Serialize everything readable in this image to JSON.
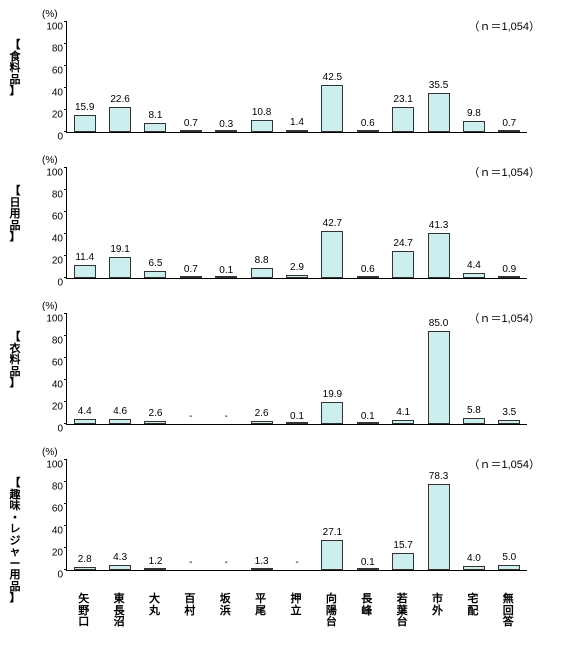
{
  "n_label": "（ｎ＝1,054）",
  "ylim": [
    0,
    100
  ],
  "ytick_step": 20,
  "yunit": "(%)",
  "bar_color": "#cceeee",
  "border_color": "#333333",
  "categories": [
    "矢野口",
    "東長沼",
    "大丸",
    "百村",
    "坂浜",
    "平尾",
    "押立",
    "向陽台",
    "長峰",
    "若葉台",
    "市外",
    "宅配",
    "無回答"
  ],
  "panels": [
    {
      "title": "【食料品】",
      "values": [
        15.9,
        22.6,
        8.1,
        0.7,
        0.3,
        10.8,
        1.4,
        42.5,
        0.6,
        23.1,
        35.5,
        9.8,
        0.7
      ]
    },
    {
      "title": "【日用品】",
      "values": [
        11.4,
        19.1,
        6.5,
        0.7,
        0.1,
        8.8,
        2.9,
        42.7,
        0.6,
        24.7,
        41.3,
        4.4,
        0.9
      ]
    },
    {
      "title": "【衣料品】",
      "values": [
        4.4,
        4.6,
        2.6,
        null,
        null,
        2.6,
        0.1,
        19.9,
        0.1,
        4.1,
        85.0,
        5.8,
        3.5
      ]
    },
    {
      "title": "【趣味・レジャー用品】",
      "values": [
        2.8,
        4.3,
        1.2,
        null,
        null,
        1.3,
        null,
        27.1,
        0.1,
        15.7,
        78.3,
        4.0,
        5.0
      ]
    }
  ]
}
